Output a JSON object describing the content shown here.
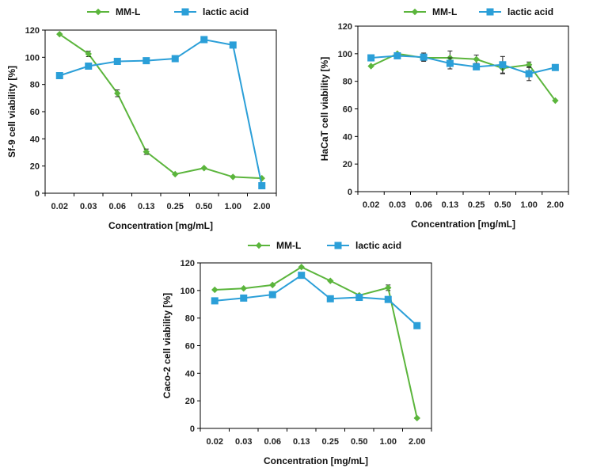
{
  "colors": {
    "mml": "#5bb53c",
    "lactic": "#2b9fd8",
    "axis": "#000000",
    "errorbar": "#222222"
  },
  "chart_data": [
    {
      "type": "line",
      "title": "",
      "xlabel": "Concentration [mg/mL]",
      "ylabel": "Sf-9 cell viability [%]",
      "ylim": [
        0,
        120
      ],
      "yticks": [
        0,
        20,
        40,
        60,
        80,
        100,
        120
      ],
      "categories": [
        "0.02",
        "0.03",
        "0.06",
        "0.13",
        "0.25",
        "0.50",
        "1.00",
        "2.00"
      ],
      "legend_position": "top",
      "series": [
        {
          "name": "MM-L",
          "marker": "diamond",
          "values": [
            117,
            102.5,
            73.5,
            30.5,
            14,
            18.5,
            12,
            11
          ],
          "errors": [
            0,
            2,
            2.5,
            2,
            0,
            0,
            0,
            0
          ]
        },
        {
          "name": "lactic acid",
          "marker": "square",
          "values": [
            86.5,
            93.5,
            97,
            97.5,
            99,
            113,
            109,
            5.5
          ],
          "errors": [
            0,
            0,
            0,
            0,
            0,
            0,
            0,
            0
          ]
        }
      ]
    },
    {
      "type": "line",
      "title": "",
      "xlabel": "Concentration [mg/mL]",
      "ylabel": "HaCaT cell viability [%]",
      "ylim": [
        0,
        120
      ],
      "yticks": [
        0,
        20,
        40,
        60,
        80,
        100,
        120
      ],
      "categories": [
        "0.02",
        "0.03",
        "0.06",
        "0.13",
        "0.25",
        "0.50",
        "1.00",
        "2.00"
      ],
      "legend_position": "top",
      "series": [
        {
          "name": "MM-L",
          "marker": "diamond",
          "values": [
            91,
            100,
            97,
            97,
            96,
            89.5,
            92,
            66
          ],
          "errors": [
            0,
            0,
            2,
            5,
            3,
            4,
            2,
            0
          ]
        },
        {
          "name": "lactic acid",
          "marker": "square",
          "values": [
            97,
            98.5,
            97.5,
            93,
            90.5,
            92,
            85.5,
            90
          ],
          "errors": [
            0,
            0,
            3,
            4,
            2,
            6,
            5,
            0
          ]
        }
      ]
    },
    {
      "type": "line",
      "title": "",
      "xlabel": "Concentration [mg/mL]",
      "ylabel": "Caco-2 cell viability [%]",
      "ylim": [
        0,
        120
      ],
      "yticks": [
        0,
        20,
        40,
        60,
        80,
        100,
        120
      ],
      "categories": [
        "0.02",
        "0.03",
        "0.06",
        "0.13",
        "0.25",
        "0.50",
        "1.00",
        "2.00"
      ],
      "legend_position": "top",
      "series": [
        {
          "name": "MM-L",
          "marker": "diamond",
          "values": [
            100.5,
            101.5,
            104,
            117,
            107,
            96.5,
            102,
            7.5
          ],
          "errors": [
            0,
            0,
            0,
            0,
            0,
            0,
            2,
            0
          ]
        },
        {
          "name": "lactic acid",
          "marker": "square",
          "values": [
            92.5,
            94.5,
            97,
            111,
            94,
            95,
            93.5,
            74.5
          ],
          "errors": [
            0,
            0,
            2,
            0,
            0,
            0,
            0,
            0
          ]
        }
      ]
    }
  ]
}
